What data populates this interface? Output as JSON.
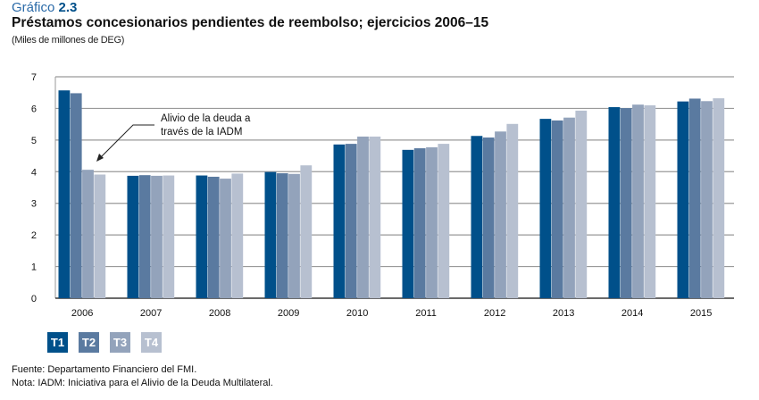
{
  "header": {
    "figure_prefix": "Gráfico",
    "figure_number": "2.3",
    "title": "Préstamos concesionarios pendientes de reembolso; ejercicios 2006–15",
    "subtitle": "(Miles de millones de DEG)"
  },
  "chart_data": {
    "type": "bar",
    "title": "Préstamos concesionarios pendientes de reembolso; ejercicios 2006–15",
    "ylabel": "Miles de millones de DEG",
    "xlabel": "",
    "ylim": [
      0,
      7
    ],
    "yticks": [
      "0",
      "1",
      "2",
      "3",
      "4",
      "5",
      "6",
      "7"
    ],
    "grid": true,
    "categories": [
      "2006",
      "2007",
      "2008",
      "2009",
      "2010",
      "2011",
      "2012",
      "2013",
      "2014",
      "2015"
    ],
    "series": [
      {
        "name": "T1",
        "color": "#00508a",
        "values": [
          6.57,
          3.87,
          3.88,
          3.99,
          4.86,
          4.69,
          5.13,
          5.67,
          6.04,
          6.22
        ]
      },
      {
        "name": "T2",
        "color": "#5a7aa0",
        "values": [
          6.48,
          3.89,
          3.84,
          3.95,
          4.88,
          4.74,
          5.08,
          5.62,
          6.01,
          6.31
        ]
      },
      {
        "name": "T3",
        "color": "#93a3bb",
        "values": [
          4.06,
          3.87,
          3.78,
          3.93,
          5.11,
          4.77,
          5.27,
          5.71,
          6.12,
          6.23
        ]
      },
      {
        "name": "T4",
        "color": "#b7c0d0",
        "values": [
          3.91,
          3.88,
          3.94,
          4.2,
          5.11,
          4.88,
          5.51,
          5.93,
          6.1,
          6.32
        ]
      }
    ],
    "annotation": {
      "line1": "Alivio de la deuda a",
      "line2": "través de la IADM"
    },
    "legend_placement": "bottom-left"
  },
  "footer": {
    "source": "Fuente: Departamento Financiero del FMI.",
    "note": "Nota: IADM: Iniciativa para el Alivio de la Deuda Multilateral."
  }
}
